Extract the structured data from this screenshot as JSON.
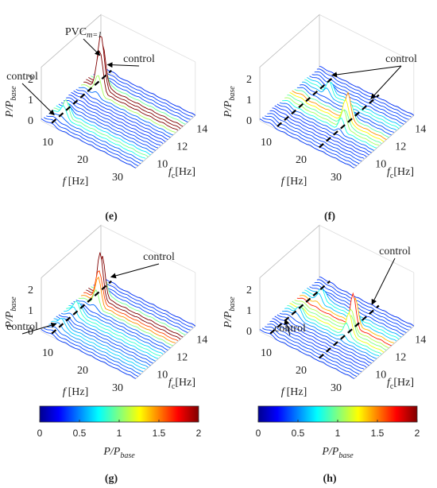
{
  "axes": {
    "z_label": {
      "main": "P/P",
      "sub": "base"
    },
    "f_label": {
      "main": "f",
      "unit": "[Hz]"
    },
    "fc_label": {
      "main": "f",
      "sub": "c",
      "unit": "[Hz]"
    },
    "z_ticks": [
      0,
      1,
      2
    ],
    "f_ticks": [
      10,
      20,
      30
    ],
    "fc_ticks": [
      10,
      12,
      14
    ]
  },
  "panels": [
    {
      "label": "(e)",
      "annotations": [
        {
          "text": "PVC",
          "sub": "m=1"
        },
        {
          "text": "control"
        },
        {
          "text": "control"
        }
      ]
    },
    {
      "label": "(f)",
      "annotations": [
        {
          "text": "control"
        }
      ]
    },
    {
      "label": "(g)",
      "annotations": [
        {
          "text": "control"
        },
        {
          "text": "control"
        }
      ]
    },
    {
      "label": "(h)",
      "annotations": [
        {
          "text": "control"
        },
        {
          "text": "control"
        }
      ]
    }
  ],
  "colorbars": [
    {
      "ticks": [
        0,
        0.5,
        1,
        1.5,
        2
      ],
      "label": {
        "main": "P/P",
        "sub": "base"
      }
    },
    {
      "ticks": [
        0,
        0.5,
        1,
        1.5,
        2
      ],
      "label": {
        "main": "P/P",
        "sub": "base"
      }
    }
  ]
}
